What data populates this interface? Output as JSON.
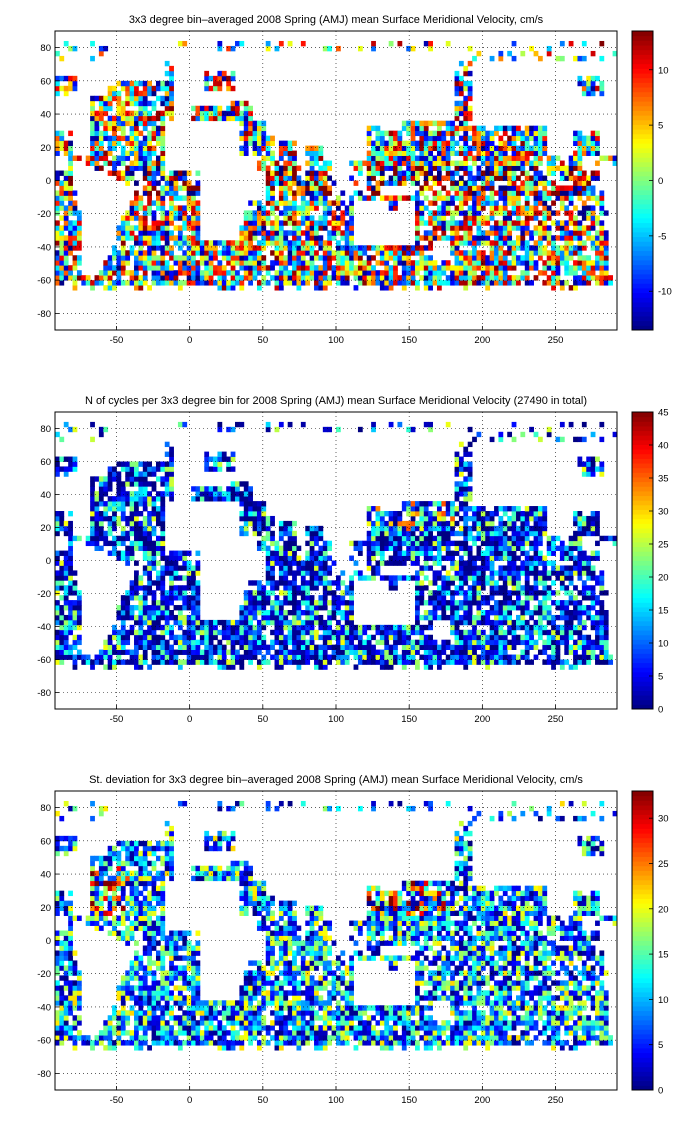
{
  "figure": {
    "background": "#ffffff",
    "grid_color": "#000000",
    "land_color": "#ffffff",
    "colormap": "jet"
  },
  "chart_data": [
    {
      "type": "heatmap",
      "title": "3x3 degree bin–averaged 2008 Spring (AMJ) mean Surface Meridional Velocity, cm/s",
      "xlabel": "",
      "ylabel": "",
      "xlim": [
        -92,
        292
      ],
      "ylim": [
        -90,
        90
      ],
      "bin_size_deg": 3,
      "x_ticks": [
        "-50",
        "0",
        "50",
        "100",
        "150",
        "200",
        "250"
      ],
      "y_ticks": [
        "80",
        "60",
        "40",
        "20",
        "0",
        "-20",
        "-40",
        "-60",
        "-80"
      ],
      "grid": true,
      "colorbar": {
        "range": [
          -13.5,
          13.5
        ],
        "ticks": [
          "10",
          "5",
          "0",
          "-5",
          "-10"
        ],
        "position": "right"
      },
      "value_model": "signed"
    },
    {
      "type": "heatmap",
      "title": "N of cycles per 3x3 degree bin for 2008 Spring (AMJ) mean Surface Meridional Velocity (27490 in total)",
      "xlabel": "",
      "ylabel": "",
      "xlim": [
        -92,
        292
      ],
      "ylim": [
        -90,
        90
      ],
      "bin_size_deg": 3,
      "total_cycles": 27490,
      "x_ticks": [
        "-50",
        "0",
        "50",
        "100",
        "150",
        "200",
        "250"
      ],
      "y_ticks": [
        "80",
        "60",
        "40",
        "20",
        "0",
        "-20",
        "-40",
        "-60",
        "-80"
      ],
      "grid": true,
      "colorbar": {
        "range": [
          0,
          45
        ],
        "ticks": [
          "45",
          "40",
          "35",
          "30",
          "25",
          "20",
          "15",
          "10",
          "5",
          "0"
        ],
        "position": "right"
      },
      "value_model": "counts"
    },
    {
      "type": "heatmap",
      "title": "St. deviation for 3x3 degree bin–averaged 2008 Spring (AMJ) mean Surface Meridional Velocity, cm/s",
      "xlabel": "",
      "ylabel": "",
      "xlim": [
        -92,
        292
      ],
      "ylim": [
        -90,
        90
      ],
      "bin_size_deg": 3,
      "x_ticks": [
        "-50",
        "0",
        "50",
        "100",
        "150",
        "200",
        "250"
      ],
      "y_ticks": [
        "80",
        "60",
        "40",
        "20",
        "0",
        "-20",
        "-40",
        "-60",
        "-80"
      ],
      "grid": true,
      "colorbar": {
        "range": [
          0,
          33
        ],
        "ticks": [
          "30",
          "25",
          "20",
          "15",
          "10",
          "5",
          "0"
        ],
        "position": "right"
      },
      "value_model": "stdev"
    }
  ]
}
